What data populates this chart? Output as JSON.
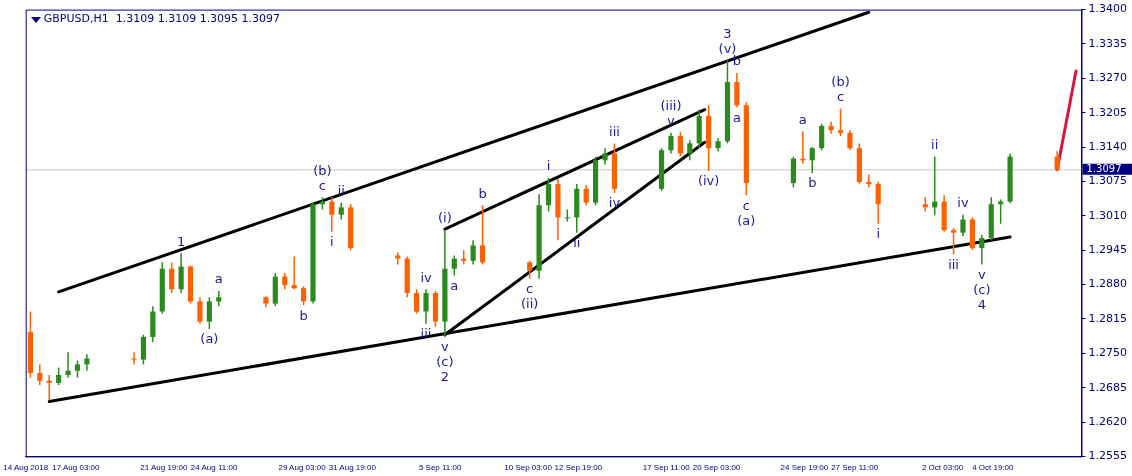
{
  "chart_data": {
    "type": "candlestick",
    "title": "GBPUSD,H1  1.3109 1.3109 1.3095 1.3097",
    "x": [
      "2018-08-14T17:00",
      "2018-08-15T05:00",
      "2018-08-15T17:00",
      "2018-08-16T05:00",
      "2018-08-16T17:00",
      "2018-08-17T05:00",
      "2018-08-17T17:00",
      "2018-08-20T05:00",
      "2018-08-20T17:00",
      "2018-08-21T05:00",
      "2018-08-21T17:00",
      "2018-08-22T05:00",
      "2018-08-22T17:00",
      "2018-08-23T05:00",
      "2018-08-23T17:00",
      "2018-08-24T05:00",
      "2018-08-24T17:00",
      "2018-08-27T05:00",
      "2018-08-27T17:00",
      "2018-08-28T05:00",
      "2018-08-28T17:00",
      "2018-08-29T05:00",
      "2018-08-29T17:00",
      "2018-08-30T05:00",
      "2018-08-30T17:00",
      "2018-08-31T05:00",
      "2018-08-31T17:00",
      "2018-09-03T05:00",
      "2018-09-03T17:00",
      "2018-09-04T05:00",
      "2018-09-04T17:00",
      "2018-09-05T05:00",
      "2018-09-05T17:00",
      "2018-09-06T05:00",
      "2018-09-06T17:00",
      "2018-09-07T05:00",
      "2018-09-07T17:00",
      "2018-09-10T05:00",
      "2018-09-10T17:00",
      "2018-09-11T05:00",
      "2018-09-11T17:00",
      "2018-09-12T05:00",
      "2018-09-12T17:00",
      "2018-09-13T05:00",
      "2018-09-13T17:00",
      "2018-09-14T05:00",
      "2018-09-14T17:00",
      "2018-09-17T05:00",
      "2018-09-17T17:00",
      "2018-09-18T05:00",
      "2018-09-18T17:00",
      "2018-09-19T05:00",
      "2018-09-19T17:00",
      "2018-09-20T05:00",
      "2018-09-20T17:00",
      "2018-09-21T05:00",
      "2018-09-21T17:00",
      "2018-09-24T05:00",
      "2018-09-24T17:00",
      "2018-09-25T05:00",
      "2018-09-25T17:00",
      "2018-09-26T05:00",
      "2018-09-26T17:00",
      "2018-09-27T05:00",
      "2018-09-27T17:00",
      "2018-09-28T05:00",
      "2018-09-28T17:00",
      "2018-10-01T05:00",
      "2018-10-01T17:00",
      "2018-10-02T05:00",
      "2018-10-02T17:00",
      "2018-10-03T05:00",
      "2018-10-03T17:00",
      "2018-10-04T05:00",
      "2018-10-04T17:00",
      "2018-10-05T05:00",
      "2018-10-05T17:00",
      "2018-10-08T05:00"
    ],
    "ohlc": [
      [
        1.279,
        1.2829,
        1.2704,
        1.2713
      ],
      [
        1.2713,
        1.2729,
        1.269,
        1.2698
      ],
      [
        1.2698,
        1.2709,
        1.2661,
        1.2694
      ],
      [
        1.2694,
        1.2723,
        1.269,
        1.2709
      ],
      [
        1.2709,
        1.2752,
        1.2704,
        1.2717
      ],
      [
        1.2717,
        1.2736,
        1.2704,
        1.2729
      ],
      [
        1.2729,
        1.2748,
        1.2717,
        1.274
      ],
      [
        1.274,
        1.2752,
        1.2729,
        1.2738
      ],
      [
        1.2738,
        1.2785,
        1.2729,
        1.2781
      ],
      [
        1.2781,
        1.2839,
        1.2771,
        1.2829
      ],
      [
        1.2829,
        1.2922,
        1.2825,
        1.291
      ],
      [
        1.291,
        1.2922,
        1.2864,
        1.2871
      ],
      [
        1.2871,
        1.2939,
        1.2864,
        1.2914
      ],
      [
        1.2914,
        1.2916,
        1.2844,
        1.2848
      ],
      [
        1.2848,
        1.2856,
        1.2806,
        1.281
      ],
      [
        1.281,
        1.2856,
        1.2796,
        1.2848
      ],
      [
        1.2848,
        1.2868,
        1.2839,
        1.2856
      ],
      [
        1.2856,
        1.2858,
        1.2837,
        1.2844
      ],
      [
        1.2844,
        1.2902,
        1.2839,
        1.2895
      ],
      [
        1.2895,
        1.2902,
        1.2871,
        1.2879
      ],
      [
        1.2879,
        1.2933,
        1.2871,
        1.2873
      ],
      [
        1.2873,
        1.2877,
        1.2841,
        1.2848
      ],
      [
        1.2848,
        1.3035,
        1.2844,
        1.3032
      ],
      [
        1.3032,
        1.3045,
        1.3022,
        1.3037
      ],
      [
        1.3037,
        1.3045,
        1.298,
        1.3012
      ],
      [
        1.3012,
        1.3035,
        1.3003,
        1.3026
      ],
      [
        1.3026,
        1.3032,
        1.2945,
        1.2949
      ],
      [
        1.2935,
        1.2941,
        1.2918,
        1.2929
      ],
      [
        1.2929,
        1.2933,
        1.2856,
        1.2864
      ],
      [
        1.2864,
        1.2871,
        1.2825,
        1.2829
      ],
      [
        1.2829,
        1.2871,
        1.2806,
        1.2864
      ],
      [
        1.2864,
        1.2868,
        1.28,
        1.281
      ],
      [
        1.281,
        1.2983,
        1.2781,
        1.291
      ],
      [
        1.291,
        1.2935,
        1.2897,
        1.2929
      ],
      [
        1.2929,
        1.2945,
        1.2918,
        1.2925
      ],
      [
        1.2925,
        1.2964,
        1.2918,
        1.2954
      ],
      [
        1.2954,
        1.303,
        1.2918,
        1.2922
      ],
      [
        1.2922,
        1.2925,
        1.2891,
        1.2906
      ],
      [
        1.2906,
        1.3051,
        1.2891,
        1.303
      ],
      [
        1.303,
        1.3082,
        1.3018,
        1.307
      ],
      [
        1.307,
        1.308,
        1.2964,
        1.3007
      ],
      [
        1.3007,
        1.3022,
        1.2999,
        1.3007
      ],
      [
        1.3007,
        1.307,
        1.2978,
        1.3061
      ],
      [
        1.3061,
        1.3068,
        1.303,
        1.3035
      ],
      [
        1.3035,
        1.3122,
        1.303,
        1.3115
      ],
      [
        1.3115,
        1.3138,
        1.3107,
        1.3128
      ],
      [
        1.3128,
        1.3147,
        1.3053,
        1.3061
      ],
      [
        1.3061,
        1.3138,
        1.3057,
        1.3134
      ],
      [
        1.3134,
        1.3167,
        1.3128,
        1.3161
      ],
      [
        1.3161,
        1.3169,
        1.3122,
        1.3128
      ],
      [
        1.3128,
        1.3153,
        1.3115,
        1.3147
      ],
      [
        1.3147,
        1.3211,
        1.3138,
        1.3199
      ],
      [
        1.3199,
        1.3219,
        1.3095,
        1.3138
      ],
      [
        1.3138,
        1.3157,
        1.3132,
        1.3151
      ],
      [
        1.3151,
        1.3304,
        1.3147,
        1.3263
      ],
      [
        1.3263,
        1.328,
        1.3215,
        1.3219
      ],
      [
        1.3219,
        1.3225,
        1.3049,
        1.3072
      ],
      [
        1.3072,
        1.3122,
        1.3064,
        1.3118
      ],
      [
        1.3118,
        1.317,
        1.3109,
        1.3115
      ],
      [
        1.3115,
        1.314,
        1.3091,
        1.3138
      ],
      [
        1.3138,
        1.3184,
        1.3134,
        1.318
      ],
      [
        1.318,
        1.3188,
        1.3165,
        1.3172
      ],
      [
        1.3172,
        1.3213,
        1.3161,
        1.3167
      ],
      [
        1.3167,
        1.3172,
        1.3134,
        1.3138
      ],
      [
        1.3138,
        1.3147,
        1.307,
        1.3074
      ],
      [
        1.3074,
        1.3088,
        1.3064,
        1.307
      ],
      [
        1.307,
        1.3074,
        1.2995,
        1.3032
      ],
      [
        1.3032,
        1.3045,
        1.3018,
        1.3026
      ],
      [
        1.3026,
        1.3122,
        1.3012,
        1.3037
      ],
      [
        1.3037,
        1.3049,
        1.298,
        1.2983
      ],
      [
        1.2983,
        1.2987,
        1.2937,
        1.2978
      ],
      [
        1.2978,
        1.3012,
        1.2972,
        1.3003
      ],
      [
        1.3003,
        1.3007,
        1.2945,
        1.2949
      ],
      [
        1.2949,
        1.2974,
        1.2918,
        1.2968
      ],
      [
        1.2968,
        1.3045,
        1.2964,
        1.3032
      ],
      [
        1.3032,
        1.3041,
        1.2995,
        1.3037
      ],
      [
        1.3037,
        1.3128,
        1.3034,
        1.3122
      ],
      [
        1.3122,
        1.3132,
        1.3095,
        1.3097
      ]
    ],
    "colors": [
      "#ff6000",
      "#ff6000",
      "#ff6000",
      "#2a8a1e",
      "#2a8a1e",
      "#2a8a1e",
      "#2a8a1e",
      "#ff6000",
      "#2a8a1e",
      "#2a8a1e",
      "#2a8a1e",
      "#ff6000",
      "#2a8a1e",
      "#ff6000",
      "#ff6000",
      "#2a8a1e",
      "#2a8a1e",
      "#ff6000",
      "#2a8a1e",
      "#ff6000",
      "#ff6000",
      "#ff6000",
      "#2a8a1e",
      "#2a8a1e",
      "#ff6000",
      "#2a8a1e",
      "#ff6000",
      "#ff6000",
      "#ff6000",
      "#ff6000",
      "#2a8a1e",
      "#ff6000",
      "#2a8a1e",
      "#2a8a1e",
      "#ff6000",
      "#2a8a1e",
      "#ff6000",
      "#ff6000",
      "#2a8a1e",
      "#2a8a1e",
      "#ff6000",
      "#2a8a1e",
      "#2a8a1e",
      "#ff6000",
      "#2a8a1e",
      "#2a8a1e",
      "#ff6000",
      "#2a8a1e",
      "#2a8a1e",
      "#ff6000",
      "#2a8a1e",
      "#2a8a1e",
      "#ff6000",
      "#2a8a1e",
      "#2a8a1e",
      "#ff6000",
      "#ff6000",
      "#2a8a1e",
      "#ff6000",
      "#2a8a1e",
      "#2a8a1e",
      "#ff6000",
      "#ff6000",
      "#ff6000",
      "#ff6000",
      "#ff6000",
      "#ff6000",
      "#ff6000",
      "#2a8a1e",
      "#ff6000",
      "#ff6000",
      "#2a8a1e",
      "#ff6000",
      "#2a8a1e",
      "#2a8a1e",
      "#2a8a1e",
      "#2a8a1e",
      "#ff6000"
    ],
    "series": [
      {
        "type": "line",
        "color": "#000000",
        "x": [
          "2018-08-16T05:00",
          "2018-09-28T05:00"
        ],
        "values": [
          1.2866,
          1.3395
        ]
      },
      {
        "type": "line",
        "color": "#000000",
        "x": [
          "2018-08-15T17:00",
          "2018-10-05T17:00"
        ],
        "values": [
          1.2659,
          1.297
        ]
      },
      {
        "type": "line",
        "color": "#000000",
        "x": [
          "2018-09-05T17:00",
          "2018-09-19T12:00"
        ],
        "values": [
          1.2985,
          1.3211
        ]
      },
      {
        "type": "line",
        "color": "#000000",
        "x": [
          "2018-09-05T17:00",
          "2018-09-19T12:00"
        ],
        "values": [
          1.2785,
          1.3149
        ]
      },
      {
        "type": "line",
        "color": "#dc143c",
        "x": [
          "2018-10-08T05:00",
          "2018-10-09T05:00"
        ],
        "values": [
          1.3097,
          1.3284
        ]
      }
    ],
    "xlim": [
      "2018-08-14T11:00",
      "2018-10-09T12:00"
    ],
    "xticks": [
      {
        "value": "2018-08-14T11:00",
        "label": "14 Aug 2018"
      },
      {
        "value": "2018-08-17T03:00",
        "label": "17 Aug 03:00"
      },
      {
        "value": "2018-08-21T19:00",
        "label": "21 Aug 19:00"
      },
      {
        "value": "2018-08-24T11:00",
        "label": "24 Aug 11:00"
      },
      {
        "value": "2018-08-29T03:00",
        "label": "29 Aug 03:00"
      },
      {
        "value": "2018-08-31T19:00",
        "label": "31 Aug 19:00"
      },
      {
        "value": "2018-09-05T11:00",
        "label": "5 Sep 11:00"
      },
      {
        "value": "2018-09-10T03:00",
        "label": "10 Sep 03:00"
      },
      {
        "value": "2018-09-12T19:00",
        "label": "12 Sep 19:00"
      },
      {
        "value": "2018-09-17T11:00",
        "label": "17 Sep 11:00"
      },
      {
        "value": "2018-09-20T03:00",
        "label": "20 Sep 03:00"
      },
      {
        "value": "2018-09-24T19:00",
        "label": "24 Sep 19:00"
      },
      {
        "value": "2018-09-27T11:00",
        "label": "27 Sep 11:00"
      },
      {
        "value": "2018-10-02T03:00",
        "label": "2 Oct 03:00"
      },
      {
        "value": "2018-10-04T19:00",
        "label": "4 Oct 19:00"
      }
    ],
    "ylim": [
      1.2555,
      1.34
    ],
    "yticks": [
      1.2555,
      {
        "value": 1.262,
        "label": "1.2620"
      },
      1.2685,
      {
        "value": 1.275,
        "label": "1.2750"
      },
      1.2815,
      {
        "value": 1.288,
        "label": "1.2880"
      },
      1.2945,
      {
        "value": 1.301,
        "label": "1.3010"
      },
      1.3075,
      {
        "value": 1.314,
        "label": "1.3140"
      },
      1.3205,
      {
        "value": 1.327,
        "label": "1.3270"
      },
      1.3335,
      {
        "value": 1.34,
        "label": "1.3400"
      }
    ],
    "ref_lines": [
      {
        "axis": "y",
        "value": 1.3097,
        "label": "1.3097",
        "color": "#c8c8c8"
      }
    ],
    "annotations": [
      {
        "text": "1",
        "x": "2018-08-22T17:00",
        "y": 1.2939
      },
      {
        "text": "(a)",
        "x": "2018-08-24T05:00",
        "y": 1.2796
      },
      {
        "text": "a",
        "x": "2018-08-24T17:00",
        "y": 1.2868
      },
      {
        "text": "b",
        "x": "2018-08-29T05:00",
        "y": 1.2841
      },
      {
        "text": "c",
        "x": "2018-08-30T05:00",
        "y": 1.3045
      },
      {
        "text": "(b)",
        "x": "2018-08-30T05:00",
        "y": 1.3045
      },
      {
        "text": "i",
        "x": "2018-08-30T17:00",
        "y": 1.298
      },
      {
        "text": "ii",
        "x": "2018-08-31T05:00",
        "y": 1.3035
      },
      {
        "text": "iii",
        "x": "2018-09-04T17:00",
        "y": 1.2806
      },
      {
        "text": "iv",
        "x": "2018-09-04T17:00",
        "y": 1.2871
      },
      {
        "text": "a",
        "x": "2018-09-06T05:00",
        "y": 1.2897
      },
      {
        "text": "v",
        "x": "2018-09-05T17:00",
        "y": 1.2781
      },
      {
        "text": "(c)",
        "x": "2018-09-05T17:00",
        "y": 1.2781
      },
      {
        "text": "2",
        "x": "2018-09-05T17:00",
        "y": 1.2781
      },
      {
        "text": "(i)",
        "x": "2018-09-05T17:00",
        "y": 1.2983
      },
      {
        "text": "b",
        "x": "2018-09-07T17:00",
        "y": 1.303
      },
      {
        "text": "c",
        "x": "2018-09-10T05:00",
        "y": 1.2891
      },
      {
        "text": "(ii)",
        "x": "2018-09-10T05:00",
        "y": 1.2891
      },
      {
        "text": "i",
        "x": "2018-09-11T05:00",
        "y": 1.3082
      },
      {
        "text": "ii",
        "x": "2018-09-12T17:00",
        "y": 1.2978
      },
      {
        "text": "iii",
        "x": "2018-09-14T17:00",
        "y": 1.3147
      },
      {
        "text": "iv",
        "x": "2018-09-14T17:00",
        "y": 1.3053
      },
      {
        "text": "v",
        "x": "2018-09-17T17:00",
        "y": 1.3167
      },
      {
        "text": "(iii)",
        "x": "2018-09-17T17:00",
        "y": 1.3167
      },
      {
        "text": "(iv)",
        "x": "2018-09-19T17:00",
        "y": 1.3095
      },
      {
        "text": "(v)",
        "x": "2018-09-20T17:00",
        "y": 1.3304
      },
      {
        "text": "3",
        "x": "2018-09-20T17:00",
        "y": 1.3304
      },
      {
        "text": "b",
        "x": "2018-09-21T05:00",
        "y": 1.328
      },
      {
        "text": "a",
        "x": "2018-09-21T05:00",
        "y": 1.3215
      },
      {
        "text": "c",
        "x": "2018-09-21T17:00",
        "y": 1.3049
      },
      {
        "text": "(a)",
        "x": "2018-09-21T17:00",
        "y": 1.3049
      },
      {
        "text": "a",
        "x": "2018-09-24T17:00",
        "y": 1.317
      },
      {
        "text": "b",
        "x": "2018-09-25T05:00",
        "y": 1.3091
      },
      {
        "text": "c",
        "x": "2018-09-26T17:00",
        "y": 1.3213
      },
      {
        "text": "(b)",
        "x": "2018-09-26T17:00",
        "y": 1.3213
      },
      {
        "text": "i",
        "x": "2018-09-28T17:00",
        "y": 1.2995
      },
      {
        "text": "ii",
        "x": "2018-10-01T17:00",
        "y": 1.3122
      },
      {
        "text": "iii",
        "x": "2018-10-02T17:00",
        "y": 1.2937
      },
      {
        "text": "iv",
        "x": "2018-10-03T05:00",
        "y": 1.3012
      },
      {
        "text": "v",
        "x": "2018-10-04T05:00",
        "y": 1.2918
      },
      {
        "text": "(c)",
        "x": "2018-10-04T05:00",
        "y": 1.2918
      },
      {
        "text": "4",
        "x": "2018-10-04T05:00",
        "y": 1.2918
      }
    ]
  }
}
